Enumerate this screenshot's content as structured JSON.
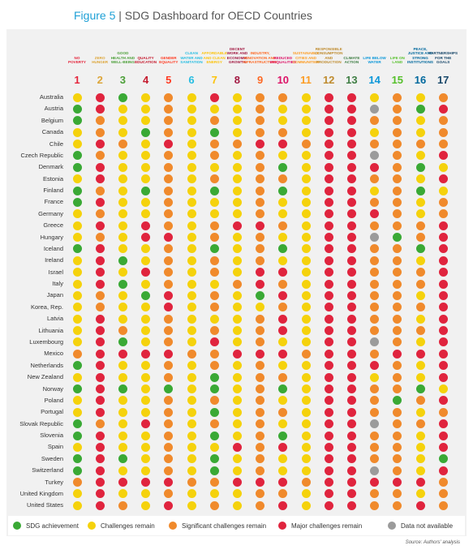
{
  "figure_label": "Figure 5",
  "title": "SDG Dashboard for OECD Countries",
  "goals": [
    {
      "number": "1",
      "label": "NO POVERTY",
      "color": "#e5243b"
    },
    {
      "number": "2",
      "label": "ZERO HUNGER",
      "color": "#dda63a"
    },
    {
      "number": "3",
      "label": "GOOD HEALTH AND WELL-BEING",
      "color": "#4c9f38"
    },
    {
      "number": "4",
      "label": "QUALITY EDUCATION",
      "color": "#c5192d"
    },
    {
      "number": "5",
      "label": "GENDER EQUALITY",
      "color": "#ff3a21"
    },
    {
      "number": "6",
      "label": "CLEAN WATER AND SANITATION",
      "color": "#26bde2"
    },
    {
      "number": "7",
      "label": "AFFORDABLE AND CLEAN ENERGY",
      "color": "#fcc30b"
    },
    {
      "number": "8",
      "label": "DECENT WORK AND ECONOMIC GROWTH",
      "color": "#a21942"
    },
    {
      "number": "9",
      "label": "INDUSTRY, INNOVATION AND INFRASTRUCTURE",
      "color": "#fd6925"
    },
    {
      "number": "10",
      "label": "REDUCED INEQUALITIES",
      "color": "#dd1367"
    },
    {
      "number": "11",
      "label": "SUSTAINABLE CITIES AND COMMUNITIES",
      "color": "#fd9d24"
    },
    {
      "number": "12",
      "label": "RESPONSIBLE CONSUMPTION AND PRODUCTION",
      "color": "#bf8b2e"
    },
    {
      "number": "13",
      "label": "CLIMATE ACTION",
      "color": "#3f7e44"
    },
    {
      "number": "14",
      "label": "LIFE BELOW WATER",
      "color": "#0a97d9"
    },
    {
      "number": "15",
      "label": "LIFE ON LAND",
      "color": "#56c02b"
    },
    {
      "number": "16",
      "label": "PEACE, JUSTICE AND STRONG INSTITUTIONS",
      "color": "#00689d"
    },
    {
      "number": "17",
      "label": "PARTNERSHIPS FOR THE GOALS",
      "color": "#19486a"
    }
  ],
  "legend": [
    {
      "label": "SDG achievement",
      "color": "#3aa935"
    },
    {
      "label": "Challenges remain",
      "color": "#f5d20c"
    },
    {
      "label": "Significant challenges remain",
      "color": "#f08a2c"
    },
    {
      "label": "Major challenges remain",
      "color": "#e0243e"
    },
    {
      "label": "Data not available",
      "color": "#9b9b9b"
    }
  ],
  "rows": [
    {
      "country": "Australia",
      "status": [
        1,
        3,
        0,
        1,
        2,
        1,
        3,
        1,
        2,
        2,
        1,
        3,
        3,
        1,
        2,
        1,
        2
      ]
    },
    {
      "country": "Austria",
      "status": [
        0,
        3,
        1,
        1,
        2,
        1,
        1,
        1,
        2,
        1,
        1,
        3,
        3,
        4,
        2,
        0,
        3
      ]
    },
    {
      "country": "Belgium",
      "status": [
        0,
        2,
        1,
        1,
        2,
        1,
        2,
        1,
        2,
        1,
        1,
        3,
        3,
        2,
        2,
        1,
        2
      ]
    },
    {
      "country": "Canada",
      "status": [
        1,
        2,
        1,
        0,
        2,
        1,
        0,
        1,
        2,
        2,
        1,
        3,
        3,
        1,
        2,
        1,
        2
      ]
    },
    {
      "country": "Chile",
      "status": [
        1,
        3,
        2,
        1,
        3,
        1,
        2,
        2,
        3,
        3,
        2,
        3,
        3,
        2,
        2,
        2,
        2
      ]
    },
    {
      "country": "Czech Republic",
      "status": [
        0,
        2,
        1,
        1,
        2,
        1,
        2,
        1,
        2,
        1,
        1,
        3,
        3,
        4,
        2,
        1,
        3
      ]
    },
    {
      "country": "Denmark",
      "status": [
        0,
        3,
        1,
        1,
        2,
        1,
        1,
        1,
        2,
        0,
        1,
        3,
        3,
        3,
        2,
        0,
        1
      ]
    },
    {
      "country": "Estonia",
      "status": [
        1,
        3,
        1,
        1,
        2,
        1,
        2,
        1,
        2,
        2,
        1,
        3,
        3,
        2,
        2,
        1,
        3
      ]
    },
    {
      "country": "Finland",
      "status": [
        0,
        2,
        1,
        0,
        2,
        1,
        0,
        1,
        2,
        0,
        1,
        3,
        3,
        1,
        2,
        0,
        1
      ]
    },
    {
      "country": "France",
      "status": [
        0,
        3,
        1,
        1,
        2,
        1,
        1,
        1,
        2,
        1,
        1,
        3,
        3,
        2,
        2,
        1,
        2
      ]
    },
    {
      "country": "Germany",
      "status": [
        1,
        2,
        1,
        1,
        2,
        1,
        1,
        1,
        2,
        1,
        1,
        3,
        3,
        3,
        2,
        1,
        2
      ]
    },
    {
      "country": "Greece",
      "status": [
        1,
        3,
        1,
        3,
        2,
        1,
        2,
        3,
        3,
        2,
        1,
        3,
        3,
        2,
        2,
        2,
        3
      ]
    },
    {
      "country": "Hungary",
      "status": [
        1,
        2,
        1,
        3,
        3,
        1,
        2,
        1,
        2,
        1,
        1,
        3,
        3,
        4,
        0,
        2,
        3
      ]
    },
    {
      "country": "Iceland",
      "status": [
        0,
        3,
        1,
        1,
        2,
        1,
        0,
        1,
        2,
        0,
        1,
        3,
        3,
        2,
        2,
        0,
        3
      ]
    },
    {
      "country": "Ireland",
      "status": [
        1,
        3,
        0,
        1,
        2,
        1,
        2,
        1,
        2,
        1,
        1,
        3,
        3,
        2,
        2,
        1,
        3
      ]
    },
    {
      "country": "Israel",
      "status": [
        1,
        3,
        1,
        3,
        2,
        1,
        2,
        1,
        3,
        3,
        1,
        3,
        3,
        2,
        2,
        2,
        3
      ]
    },
    {
      "country": "Italy",
      "status": [
        1,
        3,
        0,
        1,
        2,
        1,
        1,
        2,
        3,
        2,
        1,
        3,
        3,
        2,
        2,
        2,
        3
      ]
    },
    {
      "country": "Japan",
      "status": [
        1,
        2,
        1,
        0,
        3,
        1,
        2,
        1,
        0,
        3,
        1,
        3,
        3,
        2,
        2,
        1,
        3
      ]
    },
    {
      "country": "Korea, Rep.",
      "status": [
        1,
        2,
        1,
        1,
        3,
        1,
        2,
        1,
        1,
        2,
        1,
        3,
        3,
        2,
        2,
        2,
        3
      ]
    },
    {
      "country": "Latvia",
      "status": [
        1,
        3,
        1,
        1,
        2,
        1,
        1,
        1,
        2,
        3,
        1,
        3,
        3,
        2,
        2,
        1,
        3
      ]
    },
    {
      "country": "Lithuania",
      "status": [
        1,
        3,
        2,
        1,
        2,
        1,
        2,
        1,
        2,
        3,
        1,
        3,
        3,
        2,
        2,
        2,
        3
      ]
    },
    {
      "country": "Luxembourg",
      "status": [
        1,
        3,
        0,
        1,
        2,
        1,
        3,
        1,
        2,
        1,
        1,
        3,
        3,
        4,
        2,
        1,
        3
      ]
    },
    {
      "country": "Mexico",
      "status": [
        2,
        3,
        3,
        3,
        3,
        2,
        2,
        3,
        3,
        3,
        2,
        3,
        3,
        2,
        3,
        3,
        3
      ]
    },
    {
      "country": "Netherlands",
      "status": [
        0,
        3,
        1,
        1,
        2,
        1,
        2,
        1,
        2,
        1,
        1,
        3,
        3,
        3,
        2,
        1,
        3
      ]
    },
    {
      "country": "New Zealand",
      "status": [
        1,
        3,
        1,
        1,
        2,
        1,
        0,
        1,
        2,
        2,
        1,
        3,
        3,
        1,
        2,
        1,
        3
      ]
    },
    {
      "country": "Norway",
      "status": [
        0,
        3,
        0,
        1,
        0,
        1,
        0,
        1,
        2,
        0,
        1,
        3,
        3,
        2,
        2,
        0,
        1
      ]
    },
    {
      "country": "Poland",
      "status": [
        1,
        3,
        1,
        1,
        2,
        1,
        2,
        1,
        2,
        1,
        1,
        3,
        3,
        2,
        0,
        2,
        3
      ]
    },
    {
      "country": "Portugal",
      "status": [
        1,
        3,
        1,
        1,
        2,
        1,
        0,
        1,
        2,
        2,
        1,
        3,
        3,
        2,
        2,
        1,
        2
      ]
    },
    {
      "country": "Slovak Republic",
      "status": [
        0,
        2,
        1,
        3,
        2,
        1,
        2,
        1,
        2,
        1,
        1,
        3,
        3,
        4,
        2,
        2,
        3
      ]
    },
    {
      "country": "Slovenia",
      "status": [
        0,
        3,
        1,
        1,
        2,
        1,
        0,
        1,
        2,
        0,
        1,
        3,
        3,
        2,
        2,
        1,
        3
      ]
    },
    {
      "country": "Spain",
      "status": [
        1,
        3,
        1,
        1,
        2,
        1,
        1,
        3,
        2,
        3,
        1,
        3,
        3,
        2,
        2,
        1,
        3
      ]
    },
    {
      "country": "Sweden",
      "status": [
        0,
        3,
        0,
        1,
        2,
        1,
        0,
        1,
        2,
        1,
        1,
        3,
        3,
        2,
        2,
        1,
        0
      ]
    },
    {
      "country": "Switzerland",
      "status": [
        0,
        3,
        1,
        1,
        2,
        1,
        0,
        1,
        2,
        1,
        1,
        3,
        3,
        4,
        2,
        1,
        3
      ]
    },
    {
      "country": "Turkey",
      "status": [
        2,
        3,
        3,
        3,
        3,
        2,
        2,
        3,
        3,
        3,
        2,
        3,
        3,
        3,
        3,
        3,
        2
      ]
    },
    {
      "country": "United Kingdom",
      "status": [
        1,
        3,
        1,
        1,
        2,
        1,
        1,
        1,
        2,
        2,
        1,
        3,
        3,
        2,
        2,
        1,
        2
      ]
    },
    {
      "country": "United States",
      "status": [
        1,
        3,
        2,
        1,
        3,
        1,
        2,
        1,
        2,
        3,
        1,
        3,
        3,
        2,
        2,
        3,
        2
      ]
    }
  ],
  "source": "Source: Authors' analysis"
}
